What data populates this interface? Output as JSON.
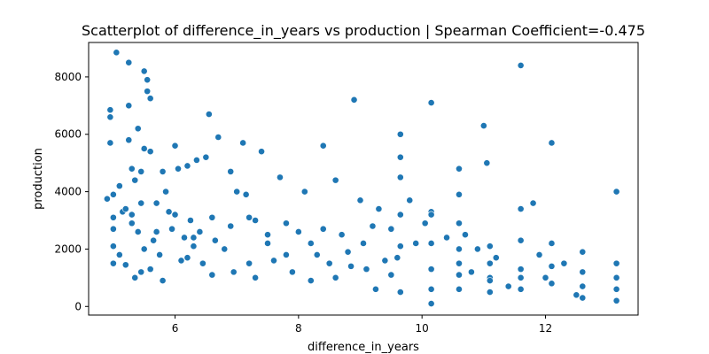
{
  "chart_data": {
    "type": "scatter",
    "title": "Scatterplot of difference_in_years vs production | Spearman Coefficient=-0.475",
    "xlabel": "difference_in_years",
    "ylabel": "production",
    "xlim": [
      4.6,
      13.5
    ],
    "ylim": [
      -300,
      9200
    ],
    "xticks": [
      6,
      8,
      10,
      12
    ],
    "yticks": [
      0,
      2000,
      4000,
      6000,
      8000
    ],
    "grid": false,
    "marker_color": "#1f77b4",
    "x": [
      4.9,
      4.95,
      4.95,
      4.95,
      5.0,
      5.0,
      5.0,
      5.0,
      5.05,
      5.1,
      5.1,
      5.15,
      5.2,
      5.25,
      5.25,
      5.25,
      5.3,
      5.3,
      5.35,
      5.4,
      5.4,
      5.45,
      5.45,
      5.5,
      5.5,
      5.55,
      5.55,
      5.6,
      5.6,
      5.65,
      5.7,
      5.75,
      5.8,
      5.85,
      5.9,
      5.95,
      6.0,
      6.05,
      6.1,
      6.15,
      6.2,
      6.25,
      6.3,
      6.35,
      6.4,
      6.45,
      6.5,
      6.55,
      6.6,
      6.65,
      6.7,
      6.8,
      6.9,
      6.95,
      7.0,
      7.1,
      7.15,
      7.2,
      7.3,
      7.4,
      7.5,
      7.6,
      7.7,
      7.8,
      7.9,
      8.0,
      8.1,
      8.2,
      8.3,
      8.4,
      8.5,
      8.6,
      8.7,
      8.8,
      8.9,
      9.0,
      9.1,
      9.2,
      9.3,
      9.4,
      9.5,
      9.6,
      9.65,
      9.65,
      9.65,
      9.65,
      9.65,
      9.65,
      9.8,
      9.9,
      10.05,
      10.15,
      10.15,
      10.15,
      10.15,
      10.15,
      10.15,
      10.4,
      10.6,
      10.6,
      10.6,
      10.6,
      10.6,
      10.6,
      10.7,
      10.8,
      10.9,
      11.0,
      11.05,
      11.1,
      11.1,
      11.1,
      11.1,
      11.2,
      11.4,
      11.6,
      11.6,
      11.6,
      11.6,
      11.6,
      11.8,
      11.9,
      12.0,
      12.1,
      12.1,
      12.1,
      12.1,
      12.3,
      12.5,
      12.6,
      12.6,
      12.6,
      12.6,
      13.15,
      13.15,
      13.15,
      13.15,
      13.15,
      5.0,
      5.2,
      5.3,
      5.35,
      5.45,
      5.5,
      5.6,
      5.7,
      5.8,
      6.0,
      6.2,
      6.3,
      6.6,
      6.9,
      7.2,
      7.3,
      7.5,
      7.8,
      8.2,
      8.4,
      8.6,
      8.85,
      9.05,
      9.25,
      9.5,
      10.15,
      10.6,
      11.1,
      11.6,
      12.1
    ],
    "y": [
      3750,
      6600,
      5700,
      6850,
      3900,
      3100,
      2700,
      1500,
      8850,
      4200,
      1800,
      3300,
      1450,
      5800,
      7000,
      8500,
      4800,
      3200,
      4400,
      2600,
      6200,
      4700,
      1200,
      8200,
      5500,
      7500,
      7900,
      5400,
      7250,
      2300,
      3600,
      1800,
      4700,
      4000,
      3300,
      2700,
      5600,
      4800,
      1600,
      2400,
      4900,
      3000,
      2100,
      5100,
      2600,
      1500,
      5200,
      6700,
      3100,
      2300,
      5900,
      2000,
      4700,
      1200,
      4000,
      5700,
      3900,
      1500,
      3000,
      5400,
      2200,
      1600,
      4500,
      2900,
      1200,
      2600,
      4000,
      2200,
      1800,
      5600,
      1500,
      4400,
      2500,
      1900,
      7200,
      3700,
      1300,
      2800,
      3400,
      1600,
      2700,
      1700,
      6000,
      5200,
      4500,
      3200,
      2100,
      500,
      3700,
      2200,
      2900,
      7100,
      3300,
      2200,
      1300,
      600,
      100,
      2400,
      4800,
      3900,
      2900,
      2000,
      1100,
      600,
      2500,
      1200,
      2000,
      6300,
      5000,
      2100,
      1500,
      1000,
      500,
      1700,
      700,
      8400,
      3400,
      2300,
      1300,
      600,
      3600,
      1800,
      1000,
      5700,
      2200,
      1400,
      800,
      1500,
      400,
      1900,
      1200,
      700,
      300,
      4000,
      1500,
      1000,
      600,
      200,
      2100,
      3400,
      2900,
      1000,
      3600,
      2000,
      1300,
      2600,
      900,
      3200,
      1700,
      2400,
      1100,
      2800,
      3100,
      1000,
      2500,
      1800,
      900,
      2700,
      1000,
      1400,
      2200,
      600,
      1100,
      3200,
      1500,
      900,
      1000,
      800
    ]
  }
}
